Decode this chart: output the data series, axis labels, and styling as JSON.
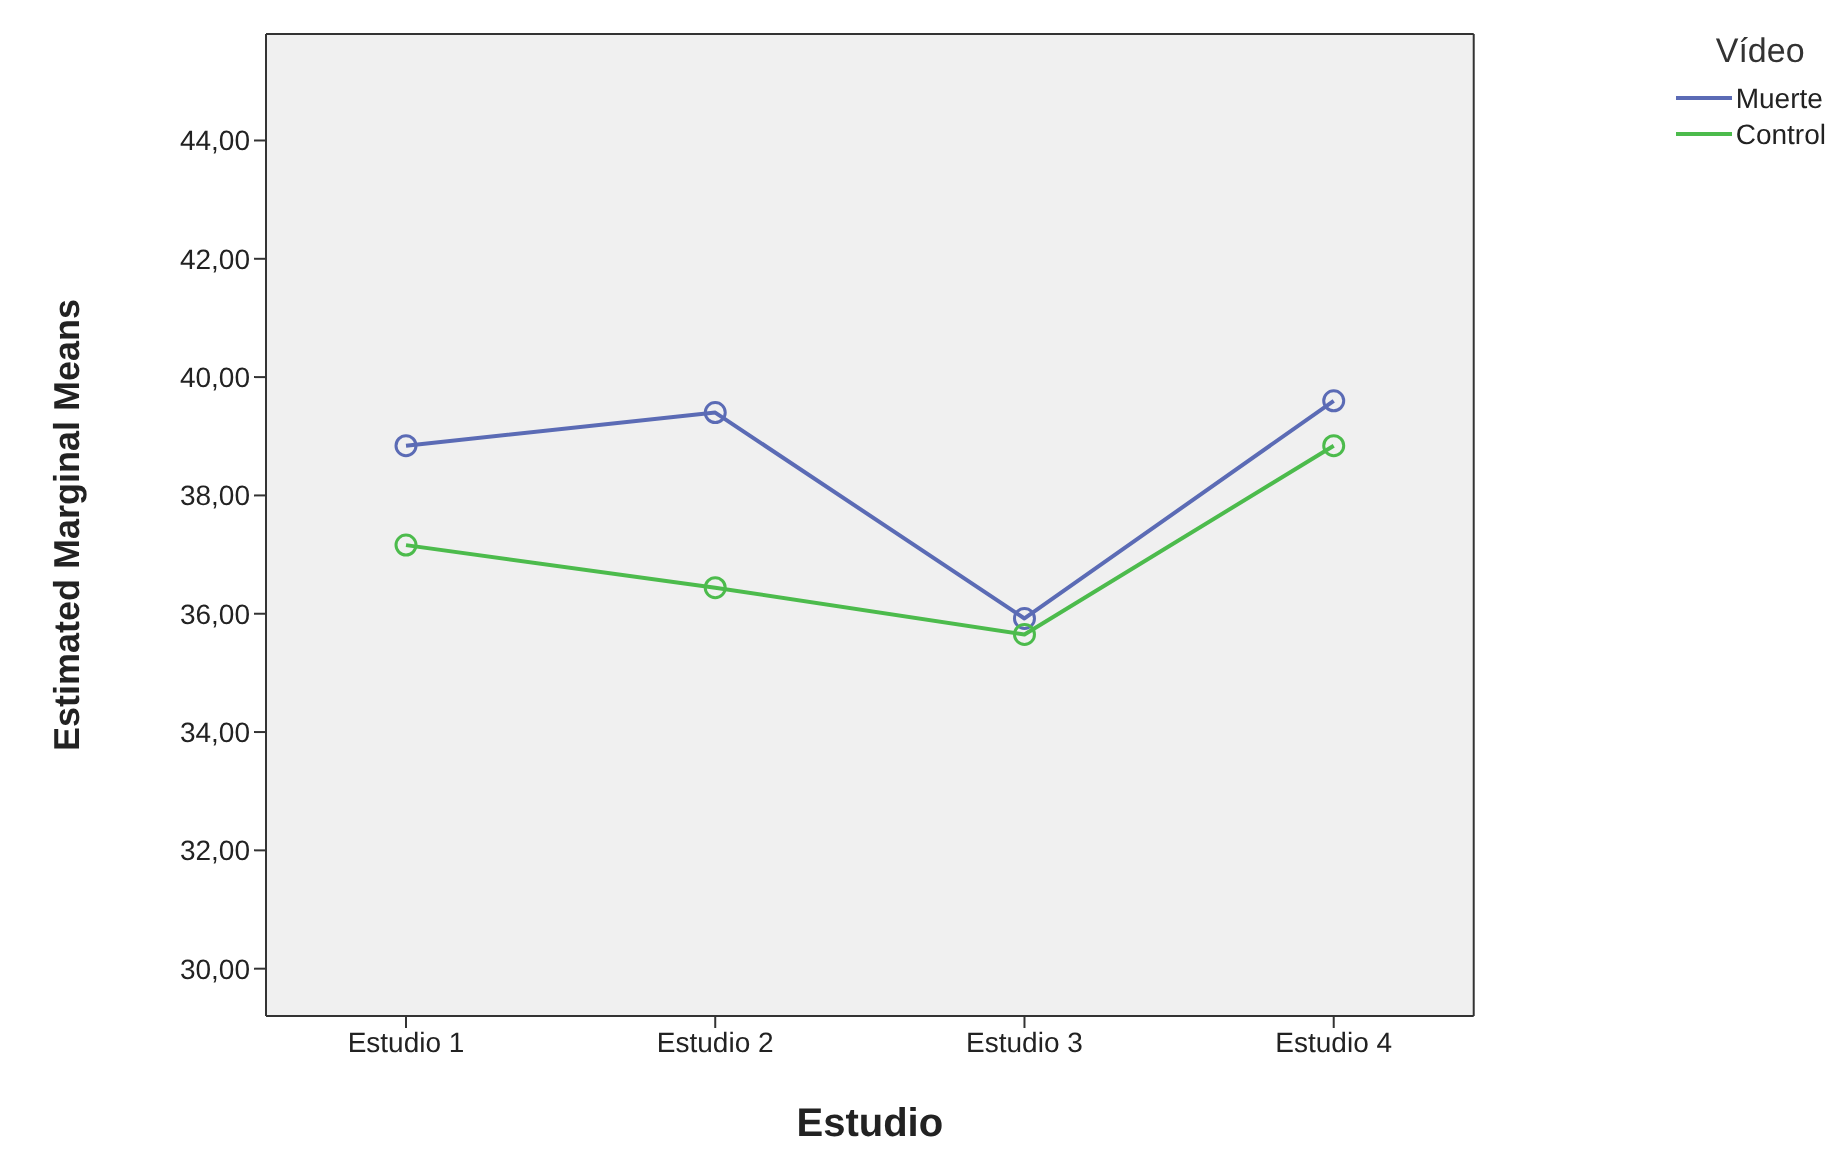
{
  "chart_data": {
    "type": "line",
    "xlabel": "Estudio",
    "ylabel": "Estimated Marginal Means",
    "legend_title": "Vídeo",
    "categories": [
      "Estudio 1",
      "Estudio 2",
      "Estudio 3",
      "Estudio 4"
    ],
    "series": [
      {
        "name": "Muerte",
        "color": "#5b6bb5",
        "values": [
          38.84,
          39.4,
          35.92,
          39.6
        ]
      },
      {
        "name": "Control",
        "color": "#4cbb4c",
        "values": [
          37.16,
          36.44,
          35.65,
          38.84
        ]
      }
    ],
    "ylim": [
      29.2,
      45.8
    ],
    "yticks": [
      {
        "value": 30,
        "label": "30,00"
      },
      {
        "value": 32,
        "label": "32,00"
      },
      {
        "value": 34,
        "label": "34,00"
      },
      {
        "value": 36,
        "label": "36,00"
      },
      {
        "value": 38,
        "label": "38,00"
      },
      {
        "value": 40,
        "label": "40,00"
      },
      {
        "value": 42,
        "label": "42,00"
      },
      {
        "value": 44,
        "label": "44,00"
      }
    ],
    "grid": false,
    "legend": "top right",
    "marker": "circle",
    "line_style": "solid"
  }
}
